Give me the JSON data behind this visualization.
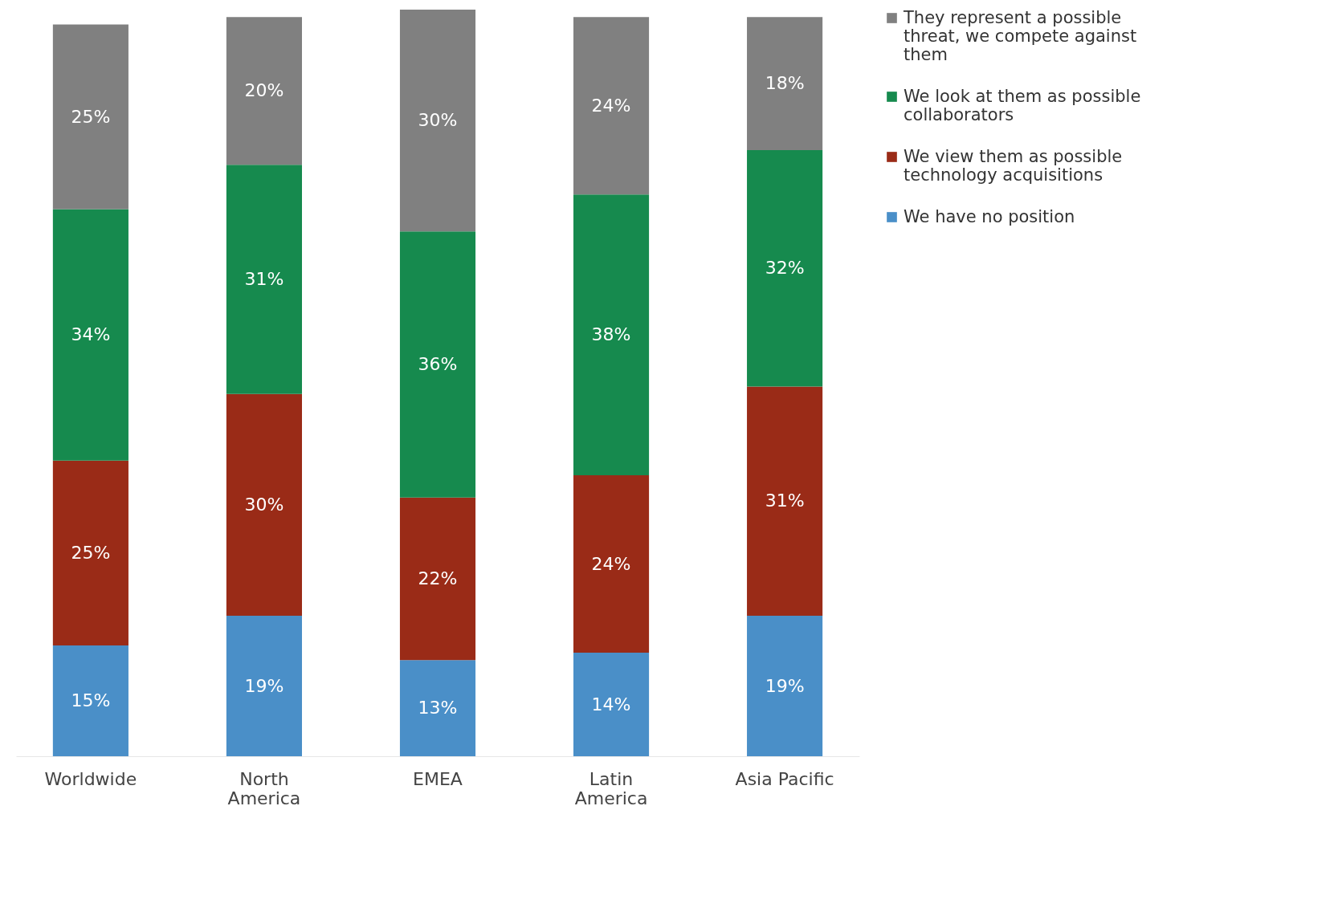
{
  "chart_data": {
    "type": "bar",
    "stacked": true,
    "legend": "top right",
    "categories": [
      "Worldwide",
      "North America",
      "EMEA",
      "Latin America",
      "Asia Pacific"
    ],
    "series": [
      {
        "name": "We have no position",
        "color": "#4a8fc8",
        "values": [
          15,
          19,
          13,
          14,
          19
        ],
        "value_labels": [
          "15%",
          "19%",
          "13%",
          "14%",
          "19%"
        ]
      },
      {
        "name": "We view them as possible technology acquisitions",
        "color": "#9a2b17",
        "values": [
          25,
          30,
          22,
          24,
          31
        ],
        "value_labels": [
          "25%",
          "30%",
          "22%",
          "24%",
          "31%"
        ]
      },
      {
        "name": "We look at them as possible collaborators",
        "color": "#168a4e",
        "values": [
          34,
          31,
          36,
          38,
          32
        ],
        "value_labels": [
          "34%",
          "31%",
          "36%",
          "38%",
          "32%"
        ]
      },
      {
        "name": "They represent a possible threat, we compete against them",
        "color": "#808080",
        "values": [
          25,
          20,
          30,
          24,
          18
        ],
        "value_labels": [
          "25%",
          "20%",
          "30%",
          "24%",
          "18%"
        ]
      }
    ]
  }
}
